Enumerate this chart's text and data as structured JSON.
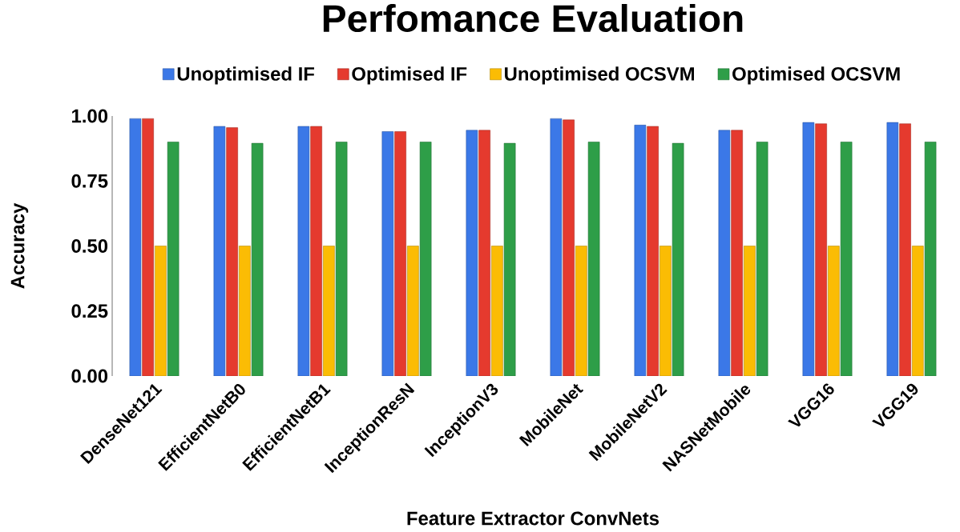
{
  "chart_data": {
    "type": "bar",
    "title": "Perfomance Evaluation",
    "xlabel": "Feature Extractor ConvNets",
    "ylabel": "Accuracy",
    "categories": [
      "DenseNet121",
      "EfficientNetB0",
      "EfficientNetB1",
      "InceptionResN",
      "InceptionV3",
      "MobileNet",
      "MobileNetV2",
      "NASNetMobile",
      "VGG16",
      "VGG19"
    ],
    "series": [
      {
        "name": "Unoptimised IF",
        "color": "#3b78e7",
        "values": [
          0.99,
          0.96,
          0.96,
          0.94,
          0.945,
          0.99,
          0.965,
          0.945,
          0.975,
          0.975
        ]
      },
      {
        "name": "Optimised IF",
        "color": "#e53a2e",
        "values": [
          0.99,
          0.955,
          0.96,
          0.94,
          0.945,
          0.985,
          0.96,
          0.945,
          0.97,
          0.97
        ]
      },
      {
        "name": "Unoptimised OCSVM",
        "color": "#fbbc04",
        "values": [
          0.5,
          0.5,
          0.5,
          0.5,
          0.5,
          0.5,
          0.5,
          0.5,
          0.5,
          0.5
        ]
      },
      {
        "name": "Optimised OCSVM",
        "color": "#2e9e48",
        "values": [
          0.9,
          0.895,
          0.9,
          0.9,
          0.895,
          0.9,
          0.895,
          0.9,
          0.9,
          0.9
        ]
      }
    ],
    "ylim": [
      0,
      1.0
    ],
    "yticks": [
      {
        "value": 0,
        "label": "0.00"
      },
      {
        "value": 0.25,
        "label": "0.25"
      },
      {
        "value": 0.5,
        "label": "0.50"
      },
      {
        "value": 0.75,
        "label": "0.75"
      },
      {
        "value": 1.0,
        "label": "1.00"
      }
    ],
    "grid": false,
    "legend": "top"
  }
}
